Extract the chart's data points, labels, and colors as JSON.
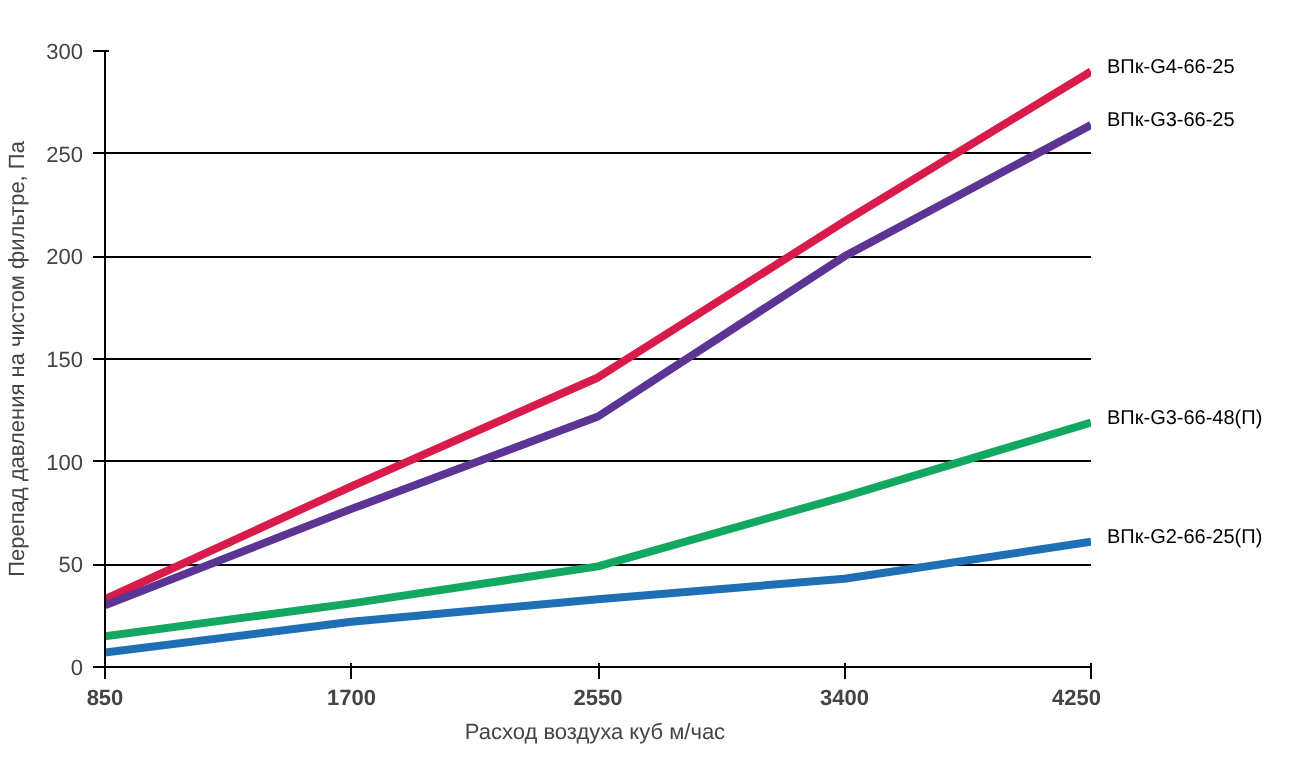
{
  "chart_data": {
    "type": "line",
    "xlabel": "Расход воздуха  куб м/час",
    "ylabel": "Перепад давления на чистом фильтре, Па",
    "x": [
      850,
      1700,
      2550,
      3400,
      4250
    ],
    "xlim": [
      850,
      4250
    ],
    "xticks": [
      850,
      1700,
      2550,
      3400,
      4250
    ],
    "ylim": [
      0,
      300
    ],
    "yticks": [
      0,
      50,
      100,
      150,
      200,
      250,
      300
    ],
    "grid": "y",
    "legend": false,
    "series": [
      {
        "name": "ВПк-G4-66-25",
        "color": "#d81b4a",
        "values": [
          33,
          88,
          141,
          217,
          290
        ]
      },
      {
        "name": "ВПк-G3-66-25",
        "color": "#5b3494",
        "values": [
          30,
          77,
          122,
          200,
          264
        ]
      },
      {
        "name": "ВПк-G3-66-48(П)",
        "color": "#13a860",
        "values": [
          15,
          31,
          49,
          83,
          119
        ]
      },
      {
        "name": "ВПк-G2-66-25(П)",
        "color": "#1f6fb6",
        "values": [
          7,
          22,
          33,
          43,
          61
        ]
      }
    ]
  }
}
